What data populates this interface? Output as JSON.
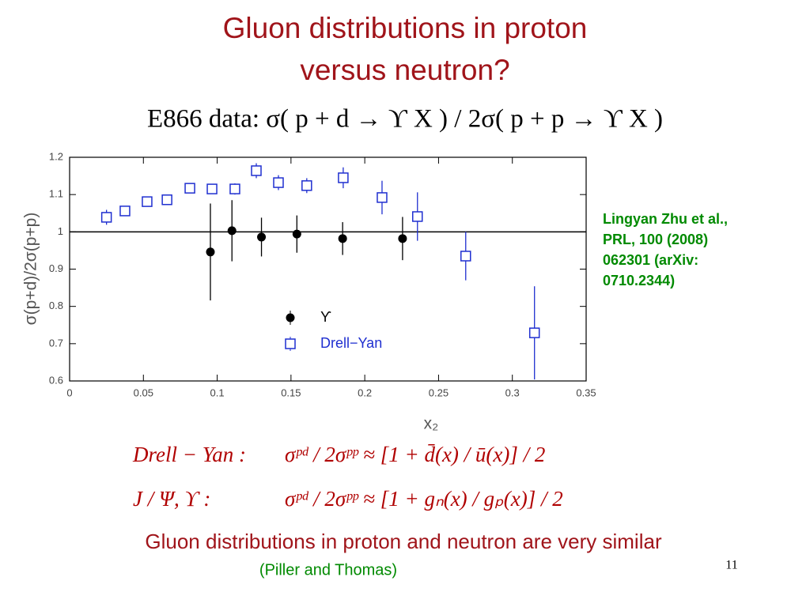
{
  "title": [
    "Gluon distributions in proton",
    "versus neutron?"
  ],
  "subtitle": "E866 data: σ( p + d → ϒ X ) / 2σ( p + p → ϒ X )",
  "chart_data": {
    "type": "scatter",
    "x_label": "x₂",
    "y_label": "σ(p+d)/2σ(p+p)",
    "xlim": [
      0,
      0.35
    ],
    "ylim": [
      0.6,
      1.2
    ],
    "xticks": [
      0,
      0.05,
      0.1,
      0.15,
      0.2,
      0.25,
      0.3,
      0.35
    ],
    "yticks": [
      0.6,
      0.7,
      0.8,
      0.9,
      1,
      1.1,
      1.2
    ],
    "hline": 1,
    "grid": false,
    "legend": "lower center",
    "series": [
      {
        "name": "ϒ",
        "color": "#000000",
        "marker": "filled-circle",
        "x": [
          0.0954,
          0.11,
          0.13,
          0.154,
          0.185,
          0.2256
        ],
        "values": [
          0.946,
          1.003,
          0.986,
          0.994,
          0.982,
          0.982
        ],
        "errors": [
          0.13,
          0.082,
          0.052,
          0.05,
          0.044,
          0.058
        ]
      },
      {
        "name": "Drell−Yan",
        "color": "#1f2fd0",
        "marker": "open-square",
        "x": [
          0.025,
          0.0375,
          0.0525,
          0.066,
          0.0815,
          0.0965,
          0.112,
          0.1265,
          0.1415,
          0.1607,
          0.1854,
          0.2117,
          0.2357,
          0.2684,
          0.315
        ],
        "values": [
          1.039,
          1.056,
          1.081,
          1.086,
          1.117,
          1.115,
          1.115,
          1.164,
          1.132,
          1.124,
          1.145,
          1.092,
          1.041,
          0.935,
          0.729
        ],
        "errors": [
          0.02,
          0.01,
          0.01,
          0.01,
          0.01,
          0.01,
          0.015,
          0.02,
          0.02,
          0.02,
          0.028,
          0.045,
          0.065,
          0.065,
          0.125
        ]
      }
    ]
  },
  "citation": [
    "Lingyan Zhu et al.,",
    "PRL, 100 (2008)",
    "062301 (arXiv:",
    "0710.2344)"
  ],
  "formulas": [
    {
      "label": "Drell − Yan :",
      "expression": "σᵖᵈ / 2σᵖᵖ ≈ [1 + d̄(x) / ū(x)] / 2"
    },
    {
      "label": "J / Ψ, ϒ :",
      "expression": "σᵖᵈ / 2σᵖᵖ ≈ [1 + gₙ(x) / gₚ(x)] / 2"
    }
  ],
  "conclusion": "Gluon distributions in proton and neutron are very similar",
  "attribution": "(Piller and Thomas)",
  "page_number": "11"
}
